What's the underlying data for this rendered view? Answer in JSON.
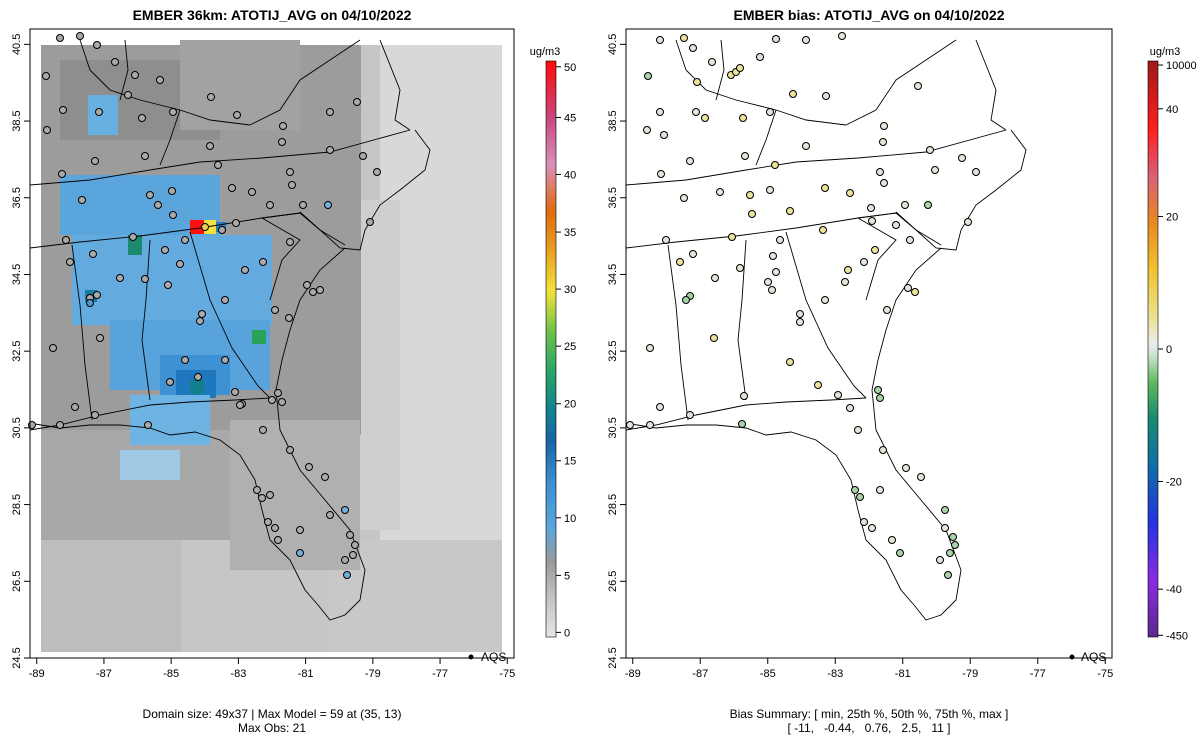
{
  "left_panel": {
    "title": "EMBER 36km: ATOTIJ_AVG on 04/10/2022",
    "footer_line1": "Domain size: 49x37 | Max Model = 59 at (35, 13)",
    "footer_line2": "Max Obs: 21",
    "legend_label": "AQS",
    "colorbar": {
      "unit": "ug/m3",
      "ticks": [
        "0",
        "5",
        "10",
        "15",
        "20",
        "25",
        "30",
        "35",
        "40",
        "45",
        "50"
      ],
      "colors": [
        "#d9d9d9",
        "#a6a6a6",
        "#8c8c8c",
        "#5aa0d8",
        "#3a8fd0",
        "#1f6fb4",
        "#12868c",
        "#26a567",
        "#5dc24a",
        "#f2e23a",
        "#e8a020",
        "#e06010",
        "#d86aa0",
        "#c83070",
        "#ff1010"
      ]
    }
  },
  "right_panel": {
    "title": "EMBER bias: ATOTIJ_AVG on 04/10/2022",
    "footer_line1": "Bias Summary: [ min, 25th %, 50th %, 75th %, max ]",
    "footer_line2": "[ -11,   -0.44,   0.76,   2.5,   11 ]",
    "legend_label": "AQS",
    "colorbar": {
      "unit": "ug/m3",
      "ticks": [
        "10000",
        "40",
        "20",
        "0",
        "-20",
        "-40",
        "-450"
      ],
      "colors": [
        "#6a1d94",
        "#8a2be2",
        "#2244dd",
        "#1060a0",
        "#1a8a70",
        "#4caf50",
        "#a8d8a8",
        "#e6e6e6",
        "#e8d870",
        "#f0c030",
        "#e89020",
        "#e05010",
        "#ff2020",
        "#b02020"
      ]
    }
  },
  "axes": {
    "x_ticks": [
      "-89",
      "-87",
      "-85",
      "-83",
      "-81",
      "-79",
      "-77",
      "-75"
    ],
    "y_ticks": [
      "24.5",
      "26.5",
      "28.5",
      "30.5",
      "32.5",
      "34.5",
      "36.5",
      "38.5",
      "40.5"
    ],
    "lon_range": [
      -89.2,
      -74.8
    ],
    "lat_range": [
      24.5,
      40.9
    ]
  },
  "colors": {
    "grid_light": "#d6d6d6",
    "grid_mid": "#b8b8b8",
    "grid_dark": "#8f8f8f",
    "grid_blue": "#5fa8dc",
    "grid_blue_dark": "#2e86c8",
    "station_gray": "#aaaaaa",
    "station_bias_neutral": "#e4e4d8",
    "station_bias_yellow": "#ece39a",
    "station_bias_green": "#a8d4a8"
  }
}
